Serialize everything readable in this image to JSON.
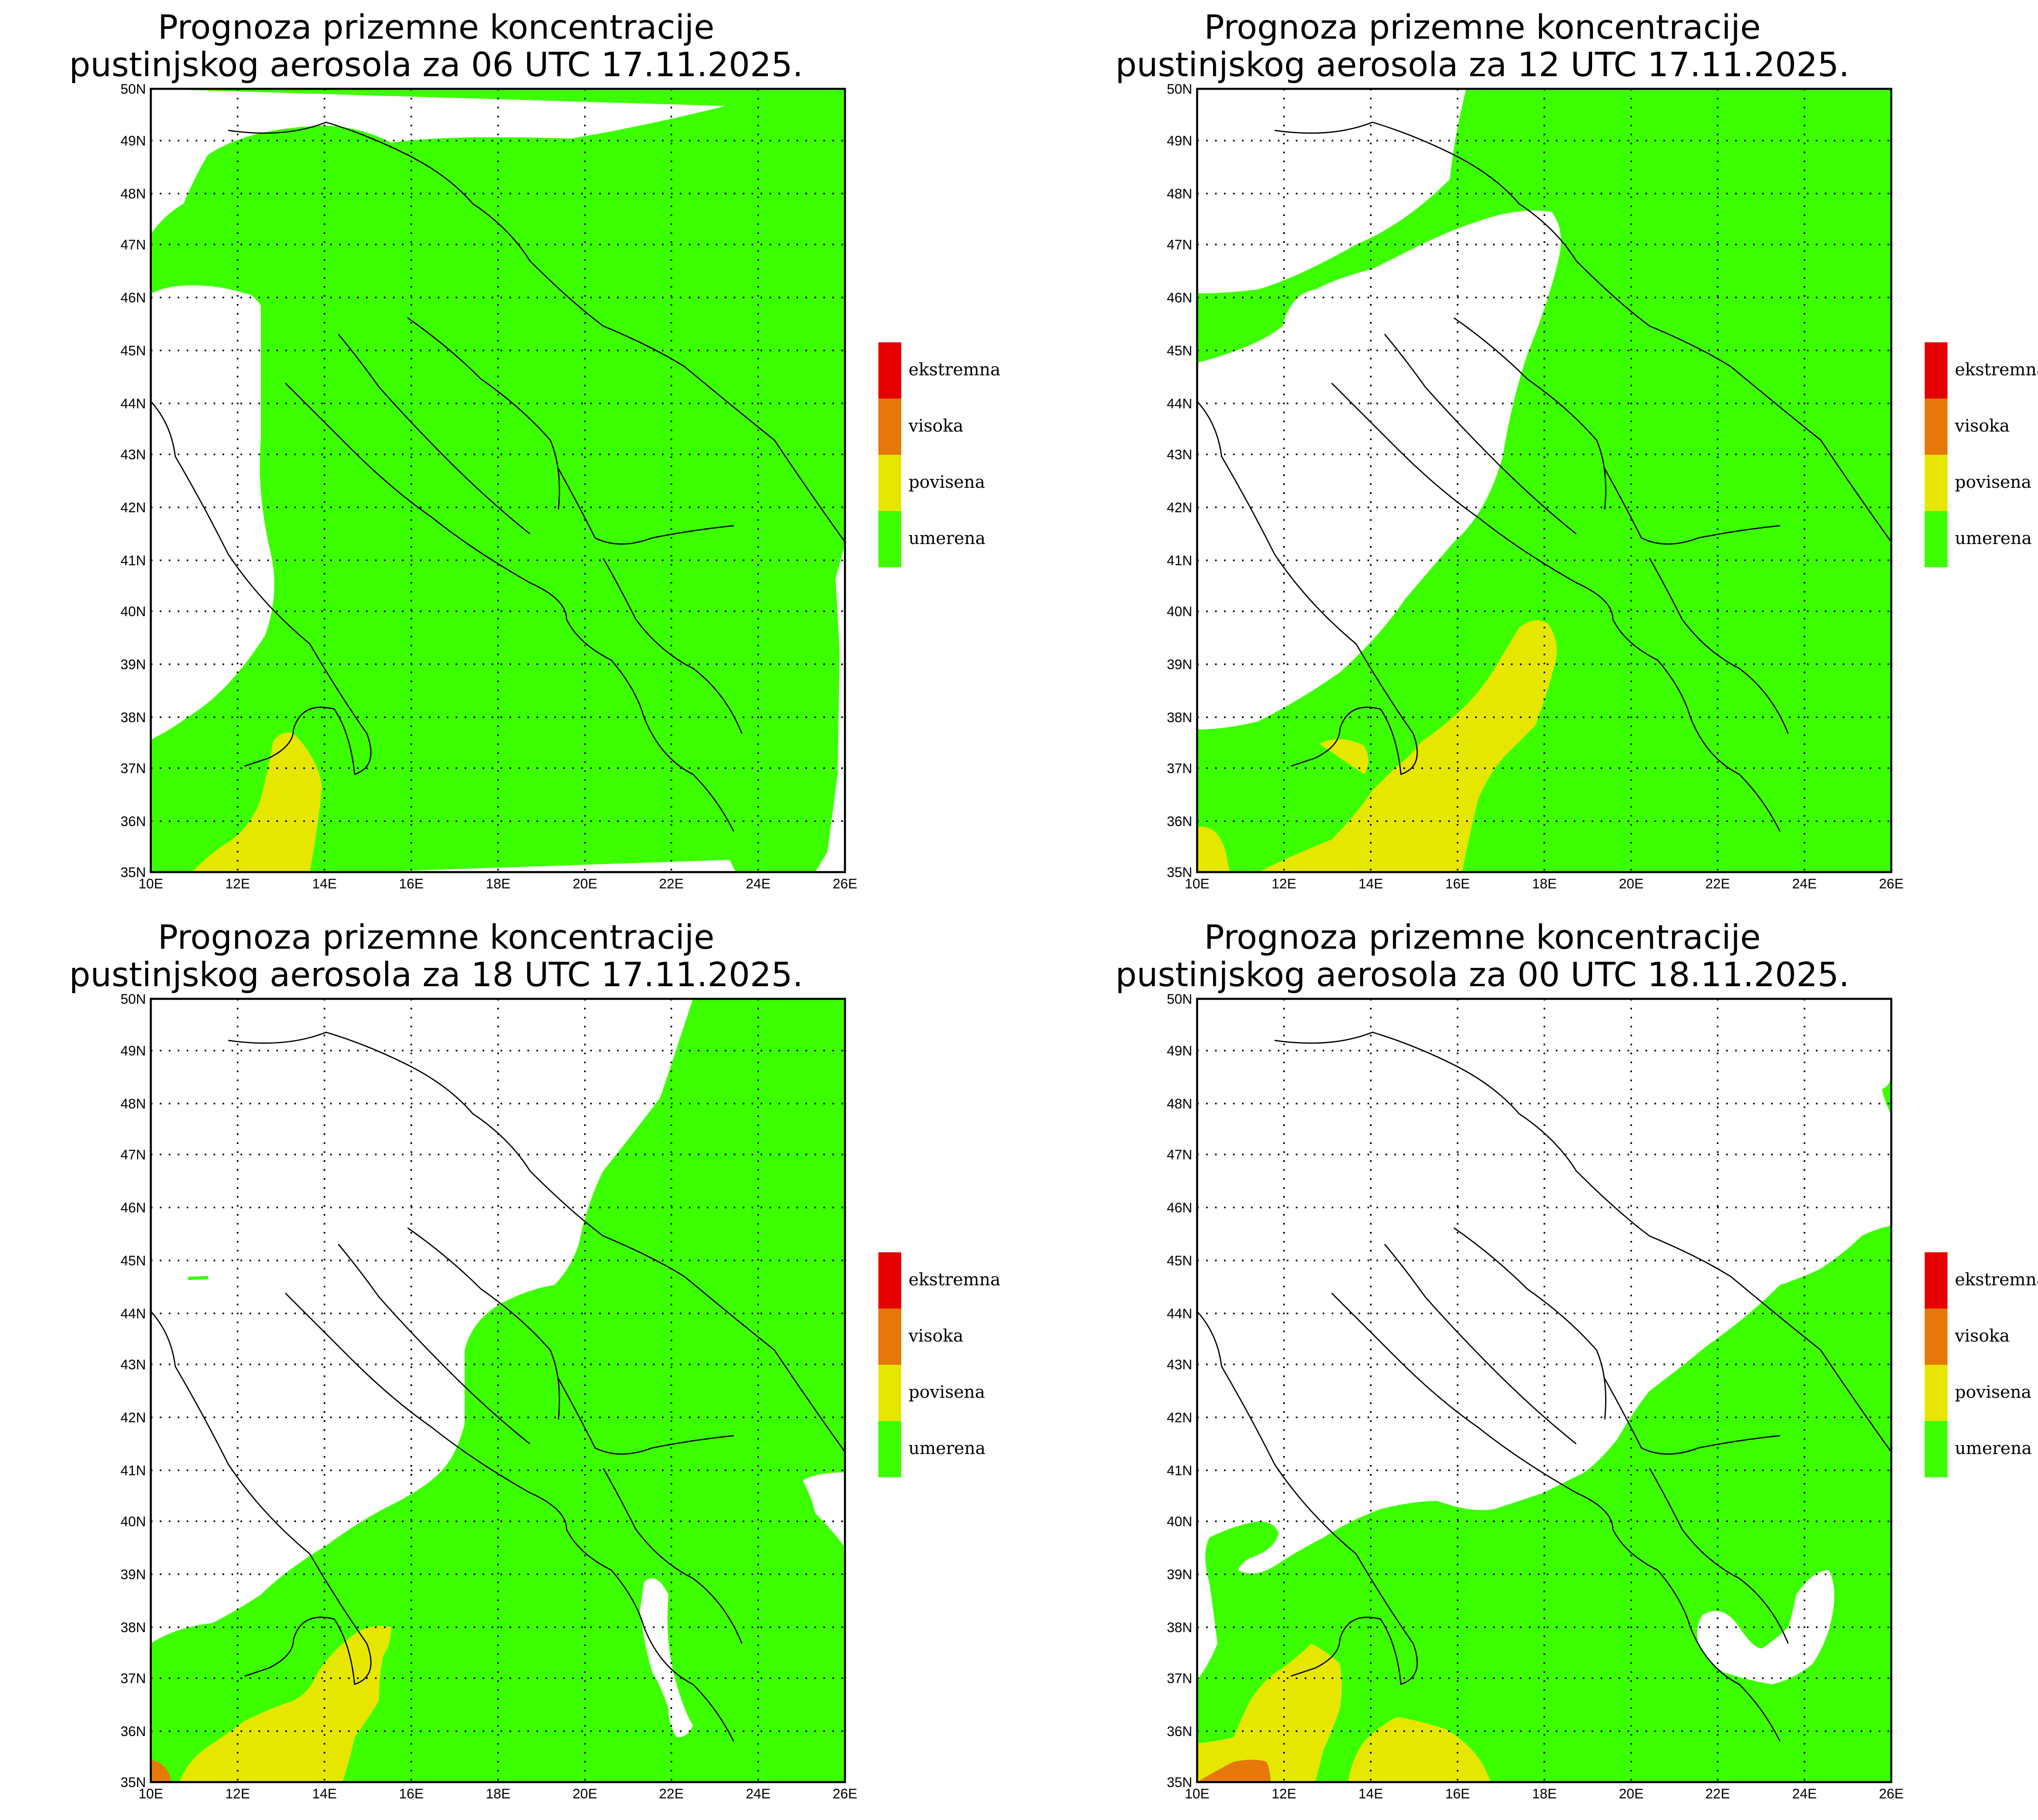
{
  "title_line1": "Prognoza prizemne koncentracije",
  "panels": [
    {
      "id": "p06",
      "title_line2": "pustinjskog aerosola za 06 UTC 17.11.2025."
    },
    {
      "id": "p12",
      "title_line2": "pustinjskog aerosola za 12 UTC 17.11.2025."
    },
    {
      "id": "p18",
      "title_line2": "pustinjskog aerosola za 18 UTC 17.11.2025."
    },
    {
      "id": "p00",
      "title_line2": "pustinjskog aerosola za 00 UTC 18.11.2025."
    }
  ],
  "axes": {
    "lon_labels": [
      "10E",
      "12E",
      "14E",
      "16E",
      "18E",
      "20E",
      "22E",
      "24E",
      "26E"
    ],
    "lat_labels": [
      "35N",
      "36N",
      "37N",
      "38N",
      "39N",
      "40N",
      "41N",
      "42N",
      "43N",
      "44N",
      "45N",
      "46N",
      "47N",
      "48N",
      "49N",
      "50N"
    ]
  },
  "legend": [
    {
      "label": "ekstremna",
      "color": "#e60000"
    },
    {
      "label": "visoka",
      "color": "#e6780a"
    },
    {
      "label": "povisena",
      "color": "#e6e600"
    },
    {
      "label": "umerena",
      "color": "#3cff00"
    }
  ]
}
